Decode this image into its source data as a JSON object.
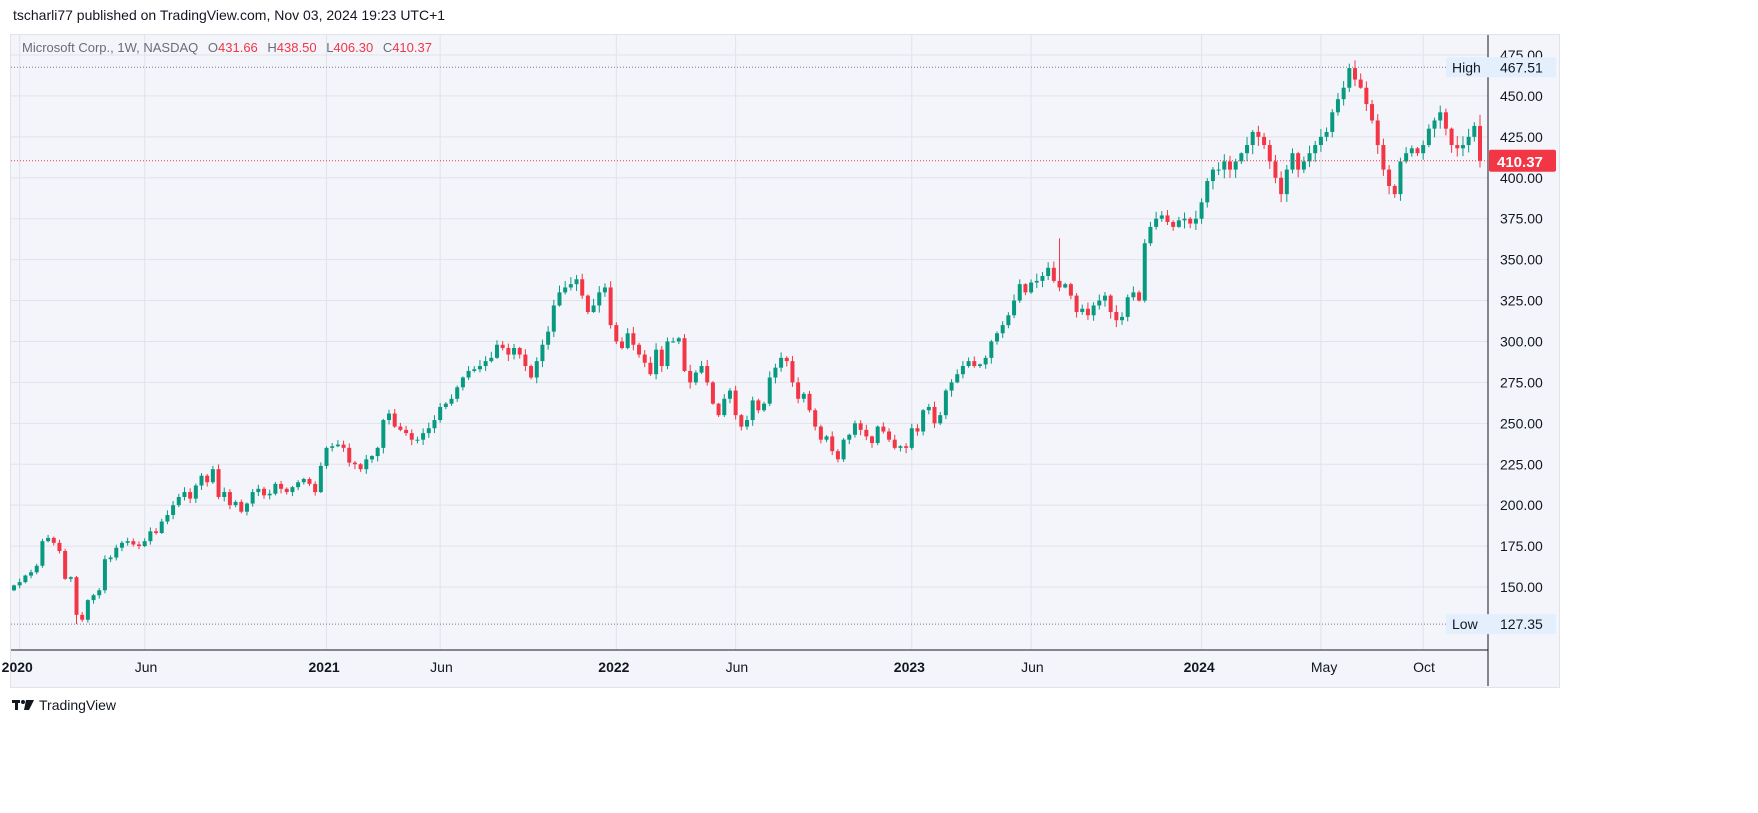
{
  "publish_line": "tscharli77 published on TradingView.com, Nov 03, 2024 19:23 UTC+1",
  "legend": {
    "symbol": "Microsoft Corp., 1W, NASDAQ",
    "o_label": "O",
    "o": "431.66",
    "h_label": "H",
    "h": "438.50",
    "l_label": "L",
    "l": "406.30",
    "c_label": "C",
    "c": "410.37"
  },
  "footer": {
    "brand": "TradingView"
  },
  "colors": {
    "up": "#089981",
    "down": "#f23645",
    "grid": "#e0e3eb",
    "background": "#f4f5fa"
  },
  "chart_data": {
    "type": "candlestick",
    "title": "Microsoft Corp., 1W, NASDAQ",
    "interval": "1W",
    "ylim": [
      115,
      480
    ],
    "y_ticks": [
      "475.00",
      "450.00",
      "425.00",
      "400.00",
      "375.00",
      "350.00",
      "325.00",
      "300.00",
      "275.00",
      "250.00",
      "225.00",
      "200.00",
      "175.00",
      "150.00"
    ],
    "x_ticks": [
      {
        "label": "2020",
        "index": 1,
        "bold": true
      },
      {
        "label": "Jun",
        "index": 23
      },
      {
        "label": "2021",
        "index": 55,
        "bold": true
      },
      {
        "label": "Jun",
        "index": 75
      },
      {
        "label": "2022",
        "index": 106,
        "bold": true
      },
      {
        "label": "Jun",
        "index": 127
      },
      {
        "label": "2023",
        "index": 158,
        "bold": true
      },
      {
        "label": "Jun",
        "index": 179
      },
      {
        "label": "2024",
        "index": 209,
        "bold": true
      },
      {
        "label": "May",
        "index": 230
      },
      {
        "label": "Oct",
        "index": 248
      }
    ],
    "high": {
      "label": "High",
      "value": "467.51"
    },
    "low": {
      "label": "Low",
      "value": "127.35"
    },
    "last_price": "410.37",
    "first_open": 148,
    "weekly_closes": [
      151,
      153,
      157,
      159,
      163,
      178,
      180,
      177,
      172,
      155,
      156,
      133,
      130,
      142,
      145,
      148,
      167,
      168,
      174,
      177,
      178,
      176,
      175,
      178,
      184,
      183,
      190,
      194,
      200,
      205,
      208,
      204,
      212,
      218,
      214,
      222,
      205,
      208,
      200,
      202,
      196,
      201,
      208,
      210,
      206,
      207,
      213,
      210,
      208,
      211,
      214,
      216,
      213,
      208,
      224,
      235,
      236,
      237,
      235,
      226,
      225,
      222,
      228,
      230,
      235,
      252,
      256,
      248,
      246,
      244,
      240,
      240,
      244,
      247,
      252,
      260,
      262,
      265,
      272,
      278,
      282,
      283,
      285,
      288,
      290,
      298,
      296,
      292,
      296,
      292,
      285,
      278,
      288,
      298,
      306,
      322,
      330,
      333,
      335,
      338,
      328,
      318,
      322,
      330,
      333,
      310,
      300,
      296,
      305,
      298,
      292,
      287,
      280,
      295,
      285,
      300,
      300,
      302,
      282,
      275,
      281,
      285,
      275,
      262,
      255,
      265,
      270,
      255,
      248,
      252,
      264,
      258,
      262,
      278,
      284,
      290,
      288,
      275,
      265,
      268,
      258,
      248,
      240,
      242,
      233,
      228,
      240,
      243,
      250,
      246,
      242,
      238,
      248,
      245,
      240,
      235,
      236,
      235,
      247,
      245,
      258,
      260,
      250,
      255,
      270,
      275,
      280,
      285,
      288,
      285,
      286,
      290,
      300,
      305,
      310,
      316,
      325,
      335,
      330,
      336,
      337,
      340,
      345,
      337,
      333,
      335,
      328,
      318,
      320,
      316,
      322,
      325,
      328,
      318,
      313,
      315,
      327,
      330,
      325,
      360,
      370,
      375,
      377,
      373,
      370,
      374,
      375,
      372,
      375,
      385,
      398,
      405,
      405,
      410,
      405,
      410,
      415,
      420,
      428,
      425,
      420,
      410,
      400,
      390,
      405,
      415,
      405,
      410,
      415,
      420,
      425,
      428,
      440,
      448,
      455,
      467,
      460,
      455,
      445,
      435,
      420,
      405,
      395,
      390,
      410,
      415,
      418,
      415,
      420,
      430,
      435,
      440,
      430,
      420,
      418,
      420,
      425,
      431.66,
      410.37
    ],
    "last_candle": {
      "open": 431.66,
      "high": 438.5,
      "low": 406.3,
      "close": 410.37
    }
  }
}
